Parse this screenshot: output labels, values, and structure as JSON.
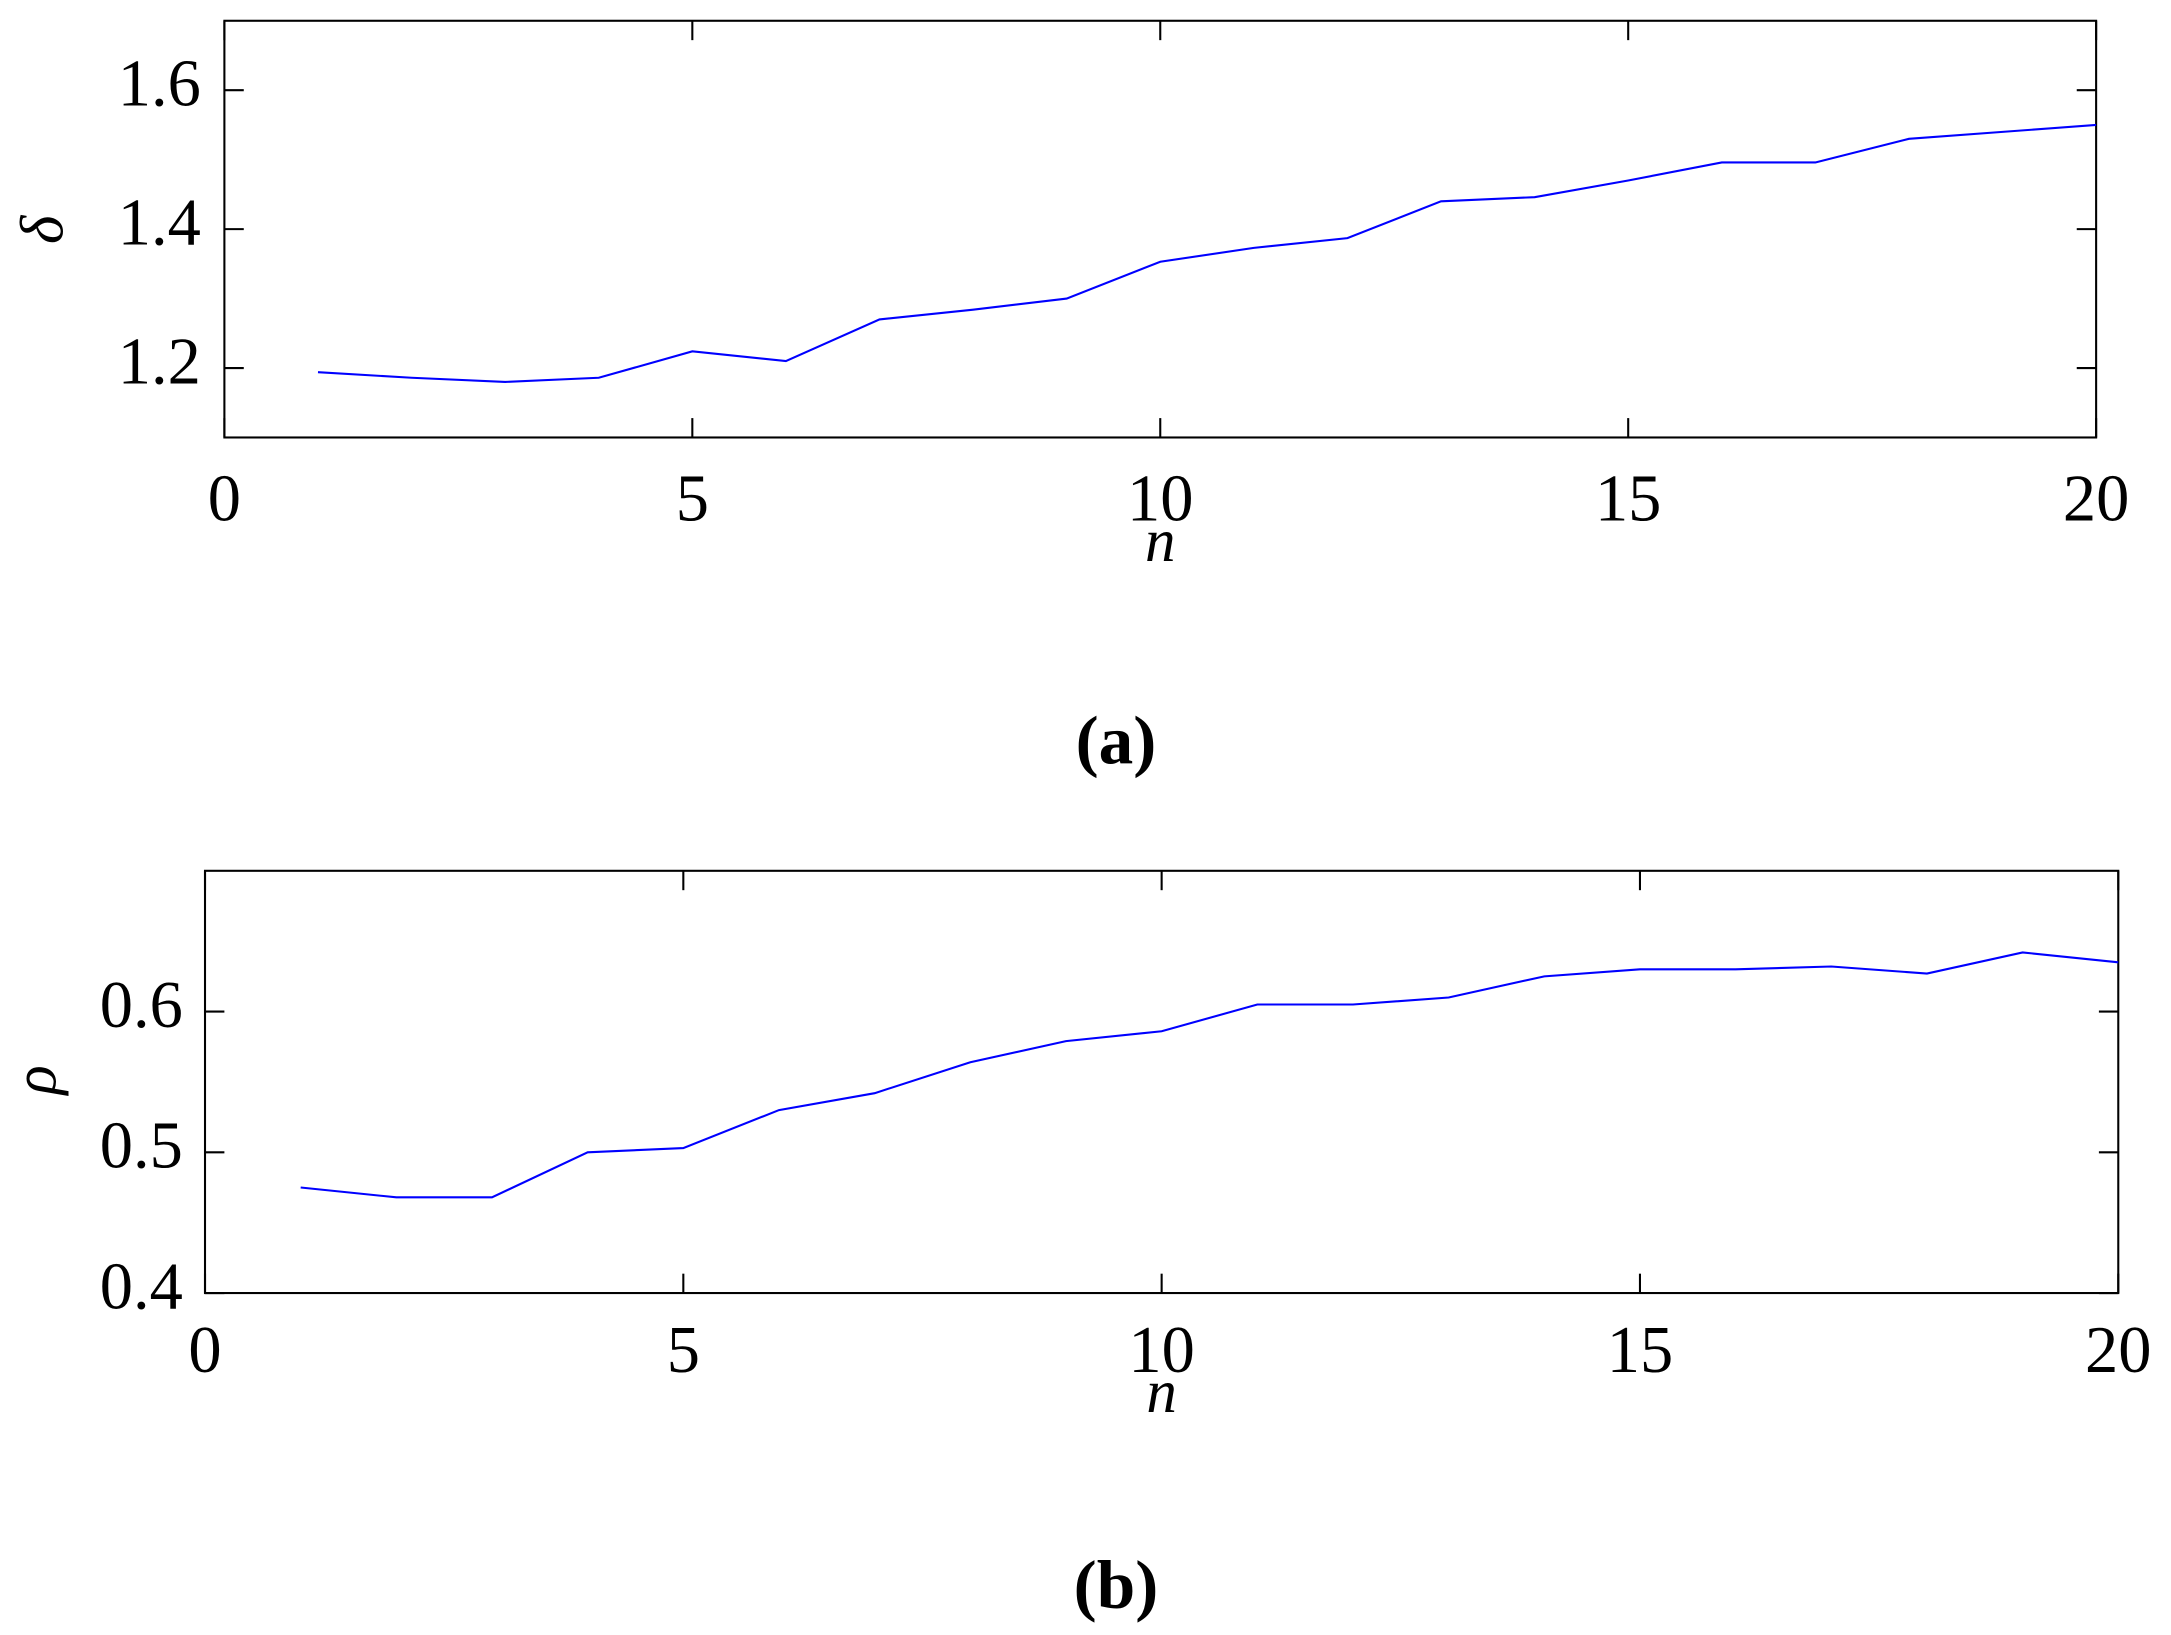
{
  "chart_data": [
    {
      "type": "line",
      "caption": "(a)",
      "x_label": "n",
      "y_label": "δ",
      "x": [
        1,
        2,
        3,
        4,
        5,
        6,
        7,
        8,
        9,
        10,
        11,
        12,
        13,
        14,
        15,
        16,
        17,
        18,
        19,
        20
      ],
      "series": [
        {
          "color": "#0000ff",
          "values": [
            1.194,
            1.186,
            1.18,
            1.186,
            1.224,
            1.21,
            1.27,
            1.284,
            1.3,
            1.353,
            1.373,
            1.387,
            1.44,
            1.446,
            1.47,
            1.496,
            1.496,
            1.53,
            1.54,
            1.55
          ]
        }
      ],
      "xlim": [
        0,
        20
      ],
      "xticks": [
        0,
        5,
        10,
        15,
        20
      ],
      "ylim": [
        1.1,
        1.7
      ],
      "yticks": [
        1.2,
        1.4,
        1.6
      ]
    },
    {
      "type": "line",
      "caption": "(b)",
      "x_label": "n",
      "y_label": "ρ",
      "x": [
        1,
        2,
        3,
        4,
        5,
        6,
        7,
        8,
        9,
        10,
        11,
        12,
        13,
        14,
        15,
        16,
        17,
        18,
        19,
        20
      ],
      "series": [
        {
          "color": "#0000ff",
          "values": [
            0.475,
            0.468,
            0.468,
            0.5,
            0.503,
            0.53,
            0.542,
            0.564,
            0.579,
            0.586,
            0.605,
            0.605,
            0.61,
            0.625,
            0.63,
            0.63,
            0.632,
            0.627,
            0.642,
            0.635
          ]
        }
      ],
      "xlim": [
        0,
        20
      ],
      "xticks": [
        0,
        5,
        10,
        15,
        20
      ],
      "ylim": [
        0.4,
        0.7
      ],
      "yticks": [
        0.4,
        0.5,
        0.6
      ]
    }
  ]
}
